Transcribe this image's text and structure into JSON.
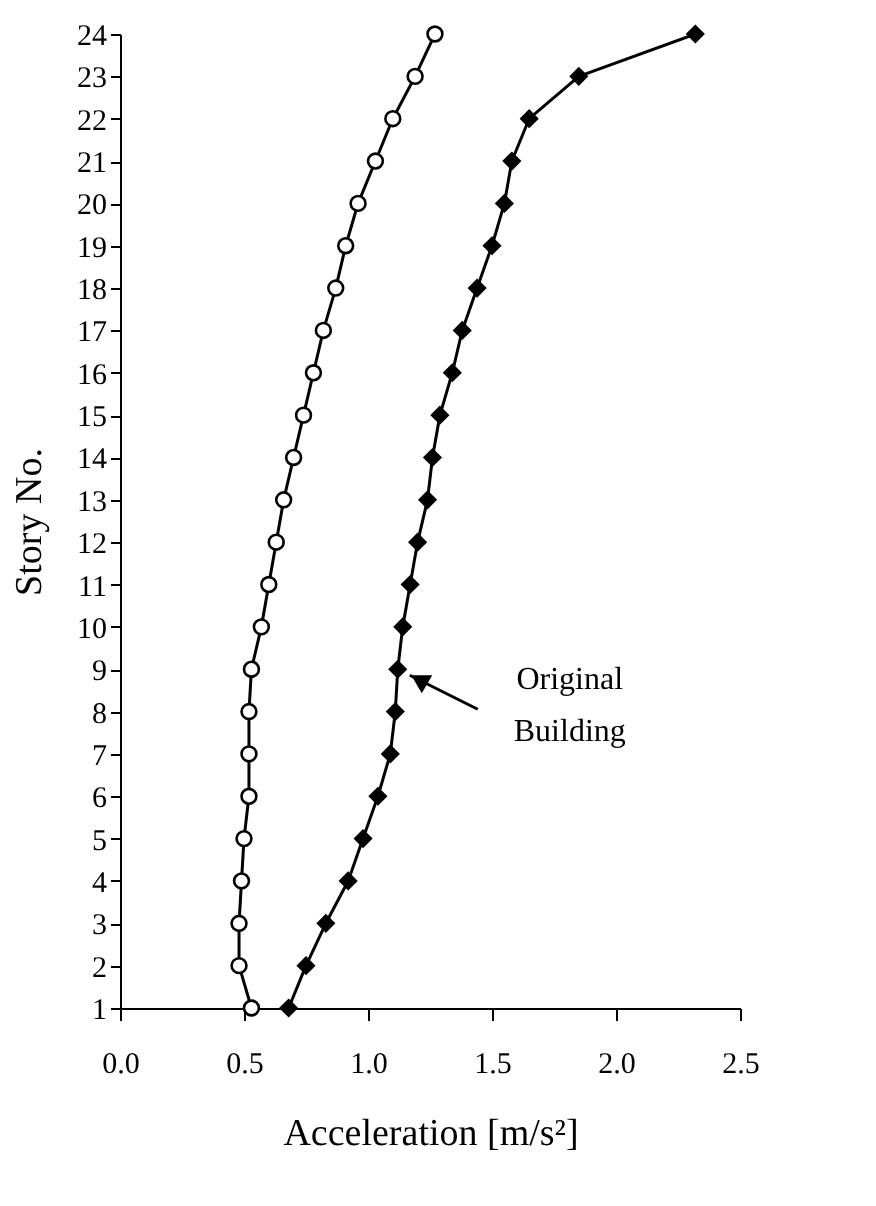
{
  "chart_data": {
    "type": "line",
    "xlabel": "Acceleration [m/s²]",
    "ylabel": "Story No.",
    "xlim": [
      0,
      2.5
    ],
    "xticks": [
      {
        "value": 0,
        "label": "0.0"
      },
      {
        "value": 0.5,
        "label": "0.5"
      },
      {
        "value": 1,
        "label": "1.0"
      },
      {
        "value": 1.5,
        "label": "1.5"
      },
      {
        "value": 2,
        "label": "2.0"
      },
      {
        "value": 2.5,
        "label": "2.5"
      }
    ],
    "ylim": [
      1,
      24
    ],
    "yticks": [
      1,
      2,
      3,
      4,
      5,
      6,
      7,
      8,
      9,
      10,
      11,
      12,
      13,
      14,
      15,
      16,
      17,
      18,
      19,
      20,
      21,
      22,
      23,
      24
    ],
    "grid": false,
    "line_style": "solid",
    "series": [
      {
        "color": "#000000",
        "marker": "circle",
        "x": [
          0.53,
          0.48,
          0.48,
          0.49,
          0.5,
          0.52,
          0.52,
          0.52,
          0.53,
          0.57,
          0.6,
          0.63,
          0.66,
          0.7,
          0.74,
          0.78,
          0.82,
          0.87,
          0.91,
          0.96,
          1.03,
          1.1,
          1.19,
          1.27
        ],
        "values": [
          1,
          2,
          3,
          4,
          5,
          6,
          7,
          8,
          9,
          10,
          11,
          12,
          13,
          14,
          15,
          16,
          17,
          18,
          19,
          20,
          21,
          22,
          23,
          24
        ]
      },
      {
        "color": "#000000",
        "marker": "diamond",
        "x": [
          0.68,
          0.75,
          0.83,
          0.92,
          0.98,
          1.04,
          1.09,
          1.11,
          1.12,
          1.14,
          1.17,
          1.2,
          1.24,
          1.26,
          1.29,
          1.34,
          1.38,
          1.44,
          1.5,
          1.55,
          1.58,
          1.65,
          1.85,
          2.32
        ],
        "values": [
          1,
          2,
          3,
          4,
          5,
          6,
          7,
          8,
          9,
          10,
          11,
          12,
          13,
          14,
          15,
          16,
          17,
          18,
          19,
          20,
          21,
          22,
          23,
          24
        ]
      }
    ],
    "annotations": [
      {
        "text": "Original Building",
        "x": 1.12,
        "y": 9
      }
    ]
  }
}
